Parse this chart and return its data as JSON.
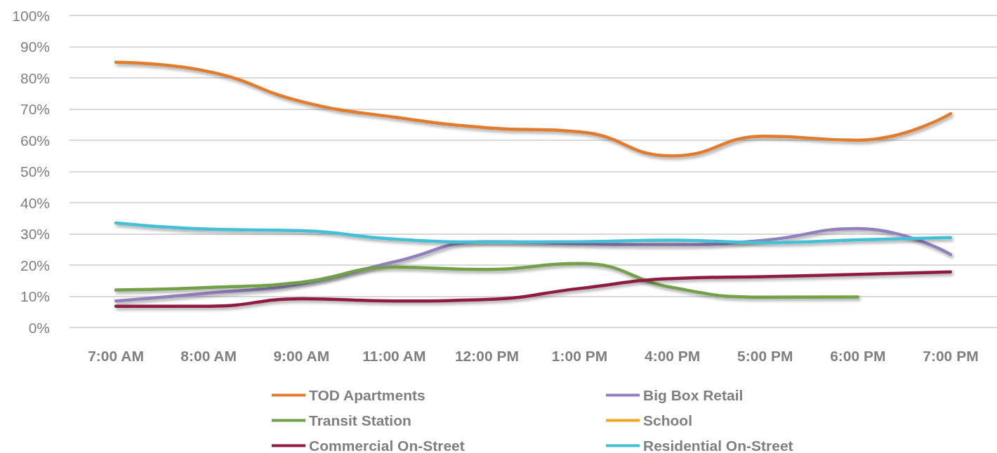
{
  "chart_data": {
    "type": "line",
    "categories": [
      "7:00 AM",
      "8:00 AM",
      "9:00 AM",
      "11:00 AM",
      "12:00 PM",
      "1:00 PM",
      "4:00 PM",
      "5:00 PM",
      "6:00 PM",
      "7:00 PM"
    ],
    "series": [
      {
        "name": "TOD Apartments",
        "color": "#e07b2f",
        "values": [
          85,
          82,
          72.4,
          67.4,
          64,
          62.7,
          55,
          61.3,
          60,
          68.5
        ]
      },
      {
        "name": "Big Box Retail",
        "color": "#9080bb",
        "values": [
          8.5,
          11,
          14,
          21,
          27.5,
          26.8,
          26.5,
          28,
          31.7,
          23.4
        ]
      },
      {
        "name": "Transit Station",
        "color": "#72a04a",
        "values": [
          12,
          12.8,
          14.5,
          19.3,
          18.6,
          20.5,
          12.8,
          9.7,
          9.8,
          null
        ]
      },
      {
        "name": "School",
        "color": "#f5a623",
        "values": [
          null,
          null,
          null,
          null,
          null,
          null,
          null,
          null,
          null,
          null
        ]
      },
      {
        "name": "Commercial On-Street",
        "color": "#8e1b43",
        "values": [
          6.8,
          6.8,
          9.2,
          8.5,
          9,
          12.5,
          15.7,
          16.3,
          17,
          17.8
        ]
      },
      {
        "name": "Residential On-Street",
        "color": "#45bfd6",
        "values": [
          33.5,
          31.5,
          31,
          28.3,
          27.4,
          27.5,
          28,
          27.2,
          28.1,
          28.8
        ]
      }
    ],
    "ylim": [
      0,
      100
    ],
    "yticks": [
      {
        "value": 0,
        "label": "0%"
      },
      {
        "value": 10,
        "label": "10%"
      },
      {
        "value": 20,
        "label": "20%"
      },
      {
        "value": 30,
        "label": "30%"
      },
      {
        "value": 40,
        "label": "40%"
      },
      {
        "value": 50,
        "label": "50%"
      },
      {
        "value": 60,
        "label": "60%"
      },
      {
        "value": 70,
        "label": "70%"
      },
      {
        "value": 80,
        "label": "80%"
      },
      {
        "value": 90,
        "label": "90%"
      },
      {
        "value": 100,
        "label": "100%"
      }
    ],
    "grid": "y",
    "legend": "bottom",
    "marker": "none",
    "line_style": "solid"
  }
}
